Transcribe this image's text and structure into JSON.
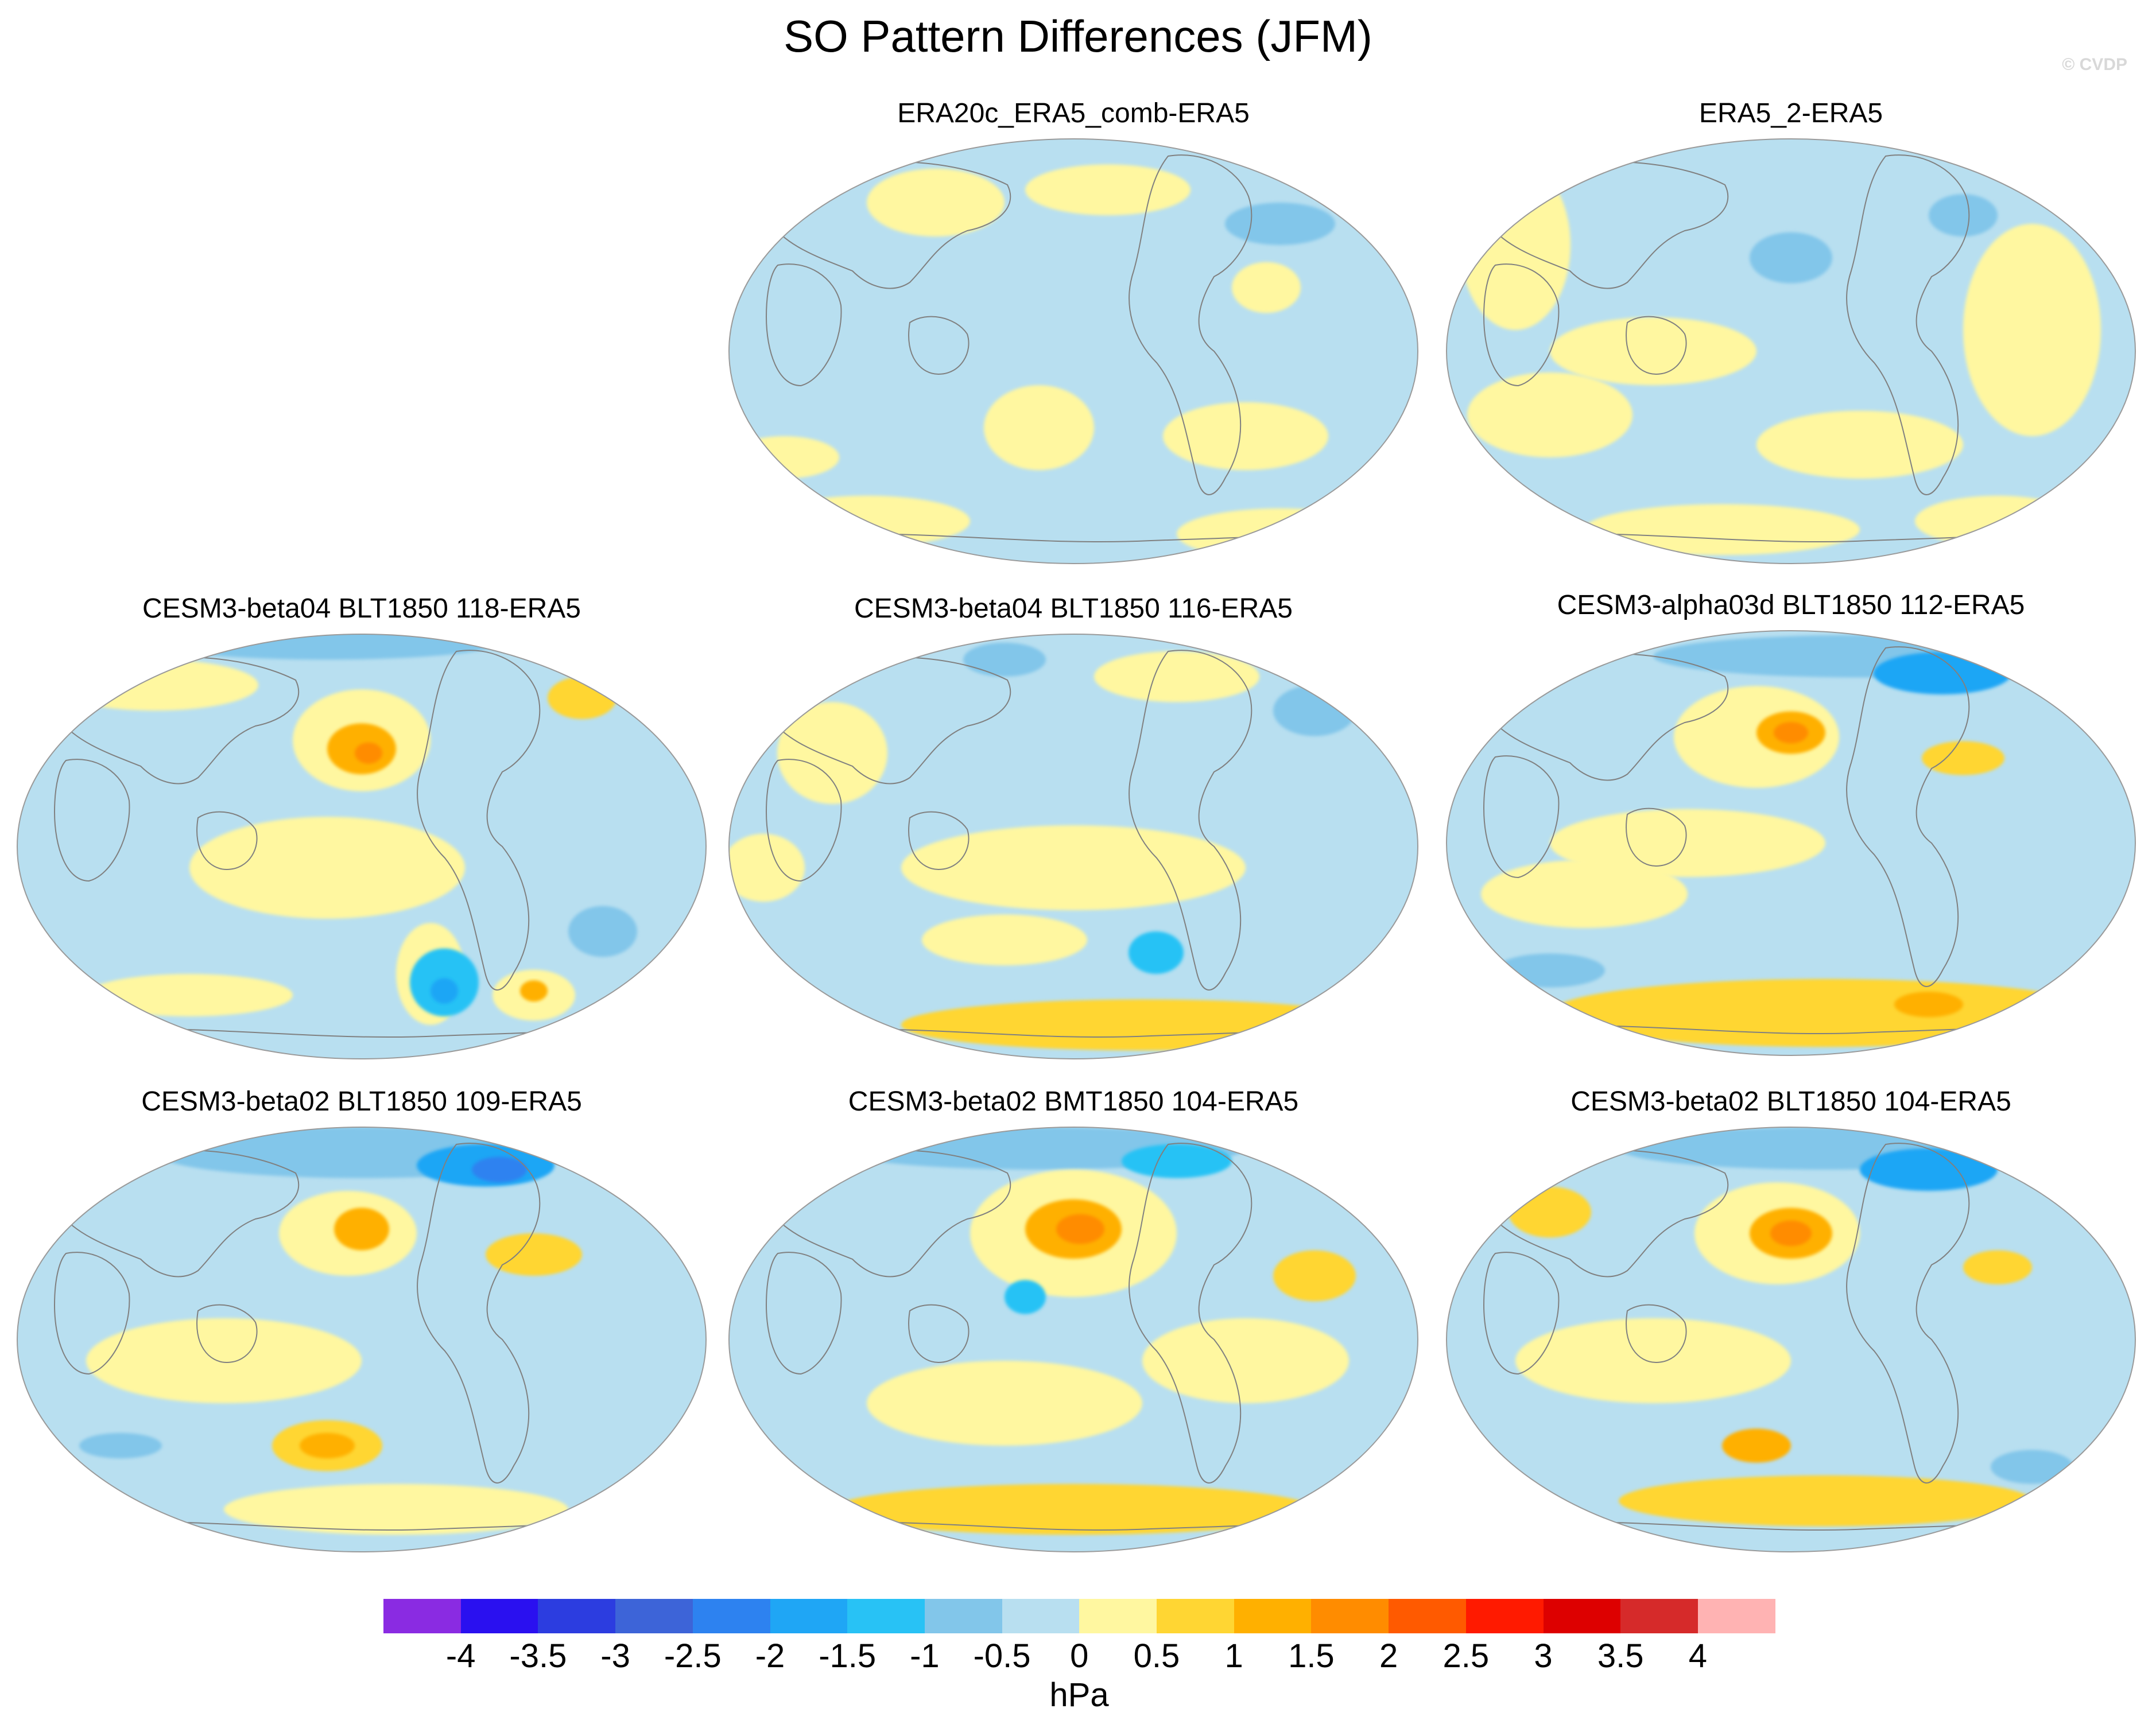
{
  "title": "SO Pattern Differences (JFM)",
  "credit": "© CVDP",
  "panels": [
    {
      "id": "p1",
      "title": "ERA20c_ERA5_comb-ERA5",
      "blobs": [
        {
          "value": 0.25,
          "nx": 0.3,
          "ny": 0.15,
          "rx": 0.1,
          "ry": 0.08
        },
        {
          "value": 0.25,
          "nx": 0.55,
          "ny": 0.12,
          "rx": 0.12,
          "ry": 0.06
        },
        {
          "value": -0.75,
          "nx": 0.8,
          "ny": 0.2,
          "rx": 0.08,
          "ry": 0.05
        },
        {
          "value": 0.25,
          "nx": 0.78,
          "ny": 0.35,
          "rx": 0.05,
          "ry": 0.06
        },
        {
          "value": 0.25,
          "nx": 0.45,
          "ny": 0.68,
          "rx": 0.08,
          "ry": 0.1
        },
        {
          "value": 0.25,
          "nx": 0.75,
          "ny": 0.7,
          "rx": 0.12,
          "ry": 0.08
        },
        {
          "value": 0.25,
          "nx": 0.2,
          "ny": 0.9,
          "rx": 0.15,
          "ry": 0.06
        },
        {
          "value": 0.25,
          "nx": 0.8,
          "ny": 0.93,
          "rx": 0.15,
          "ry": 0.06
        },
        {
          "value": 0.25,
          "nx": 0.08,
          "ny": 0.75,
          "rx": 0.08,
          "ry": 0.05
        }
      ]
    },
    {
      "id": "p2",
      "title": "ERA5_2-ERA5",
      "blobs": [
        {
          "value": 0.25,
          "nx": 0.1,
          "ny": 0.25,
          "rx": 0.08,
          "ry": 0.2
        },
        {
          "value": -0.75,
          "nx": 0.5,
          "ny": 0.28,
          "rx": 0.06,
          "ry": 0.06
        },
        {
          "value": -0.75,
          "nx": 0.75,
          "ny": 0.18,
          "rx": 0.05,
          "ry": 0.05
        },
        {
          "value": 0.25,
          "nx": 0.3,
          "ny": 0.5,
          "rx": 0.15,
          "ry": 0.08
        },
        {
          "value": 0.25,
          "nx": 0.85,
          "ny": 0.45,
          "rx": 0.1,
          "ry": 0.25
        },
        {
          "value": 0.25,
          "nx": 0.15,
          "ny": 0.65,
          "rx": 0.12,
          "ry": 0.1
        },
        {
          "value": 0.25,
          "nx": 0.6,
          "ny": 0.72,
          "rx": 0.15,
          "ry": 0.08
        },
        {
          "value": 0.25,
          "nx": 0.4,
          "ny": 0.92,
          "rx": 0.2,
          "ry": 0.06
        },
        {
          "value": 0.25,
          "nx": 0.8,
          "ny": 0.9,
          "rx": 0.12,
          "ry": 0.06
        }
      ]
    },
    {
      "id": "p3",
      "title": "CESM3-beta04 BLT1850 118-ERA5",
      "blobs": [
        {
          "value": -0.75,
          "nx": 0.45,
          "ny": 0.02,
          "rx": 0.25,
          "ry": 0.04
        },
        {
          "value": 0.25,
          "nx": 0.5,
          "ny": 0.25,
          "rx": 0.1,
          "ry": 0.12
        },
        {
          "value": 1.25,
          "nx": 0.5,
          "ny": 0.27,
          "rx": 0.05,
          "ry": 0.06
        },
        {
          "value": 1.75,
          "nx": 0.51,
          "ny": 0.28,
          "rx": 0.02,
          "ry": 0.025
        },
        {
          "value": 0.75,
          "nx": 0.82,
          "ny": 0.15,
          "rx": 0.05,
          "ry": 0.05
        },
        {
          "value": 0.25,
          "nx": 0.2,
          "ny": 0.12,
          "rx": 0.15,
          "ry": 0.06
        },
        {
          "value": 0.25,
          "nx": 0.45,
          "ny": 0.55,
          "rx": 0.2,
          "ry": 0.12
        },
        {
          "value": 0.25,
          "nx": 0.6,
          "ny": 0.8,
          "rx": 0.05,
          "ry": 0.12
        },
        {
          "value": -1.25,
          "nx": 0.62,
          "ny": 0.82,
          "rx": 0.05,
          "ry": 0.08
        },
        {
          "value": -1.75,
          "nx": 0.62,
          "ny": 0.84,
          "rx": 0.02,
          "ry": 0.03
        },
        {
          "value": 0.25,
          "nx": 0.75,
          "ny": 0.85,
          "rx": 0.06,
          "ry": 0.06
        },
        {
          "value": 1.25,
          "nx": 0.75,
          "ny": 0.84,
          "rx": 0.02,
          "ry": 0.025
        },
        {
          "value": -0.75,
          "nx": 0.85,
          "ny": 0.7,
          "rx": 0.05,
          "ry": 0.06
        },
        {
          "value": 0.25,
          "nx": 0.25,
          "ny": 0.85,
          "rx": 0.15,
          "ry": 0.05
        }
      ]
    },
    {
      "id": "p4",
      "title": "CESM3-beta04 BLT1850 116-ERA5",
      "blobs": [
        {
          "value": -0.75,
          "nx": 0.4,
          "ny": 0.06,
          "rx": 0.06,
          "ry": 0.04
        },
        {
          "value": 0.25,
          "nx": 0.65,
          "ny": 0.1,
          "rx": 0.12,
          "ry": 0.06
        },
        {
          "value": -0.75,
          "nx": 0.85,
          "ny": 0.18,
          "rx": 0.06,
          "ry": 0.06
        },
        {
          "value": 0.25,
          "nx": 0.15,
          "ny": 0.28,
          "rx": 0.08,
          "ry": 0.12
        },
        {
          "value": 0.25,
          "nx": 0.5,
          "ny": 0.55,
          "rx": 0.25,
          "ry": 0.1
        },
        {
          "value": -1.25,
          "nx": 0.62,
          "ny": 0.75,
          "rx": 0.04,
          "ry": 0.05
        },
        {
          "value": 0.75,
          "nx": 0.6,
          "ny": 0.92,
          "rx": 0.35,
          "ry": 0.06
        },
        {
          "value": 0.25,
          "nx": 0.4,
          "ny": 0.72,
          "rx": 0.12,
          "ry": 0.06
        },
        {
          "value": 0.25,
          "nx": 0.05,
          "ny": 0.55,
          "rx": 0.06,
          "ry": 0.08
        }
      ]
    },
    {
      "id": "p5",
      "title": "CESM3-alpha03d BLT1850 112-ERA5",
      "blobs": [
        {
          "value": -0.75,
          "nx": 0.6,
          "ny": 0.06,
          "rx": 0.3,
          "ry": 0.05
        },
        {
          "value": -1.75,
          "nx": 0.72,
          "ny": 0.1,
          "rx": 0.1,
          "ry": 0.05
        },
        {
          "value": 0.25,
          "nx": 0.45,
          "ny": 0.25,
          "rx": 0.12,
          "ry": 0.12
        },
        {
          "value": 1.25,
          "nx": 0.5,
          "ny": 0.24,
          "rx": 0.05,
          "ry": 0.05
        },
        {
          "value": 1.75,
          "nx": 0.5,
          "ny": 0.24,
          "rx": 0.025,
          "ry": 0.025
        },
        {
          "value": 0.75,
          "nx": 0.75,
          "ny": 0.3,
          "rx": 0.06,
          "ry": 0.04
        },
        {
          "value": 0.25,
          "nx": 0.35,
          "ny": 0.5,
          "rx": 0.2,
          "ry": 0.08
        },
        {
          "value": 0.25,
          "nx": 0.2,
          "ny": 0.62,
          "rx": 0.15,
          "ry": 0.08
        },
        {
          "value": -0.75,
          "nx": 0.15,
          "ny": 0.8,
          "rx": 0.08,
          "ry": 0.04
        },
        {
          "value": 0.75,
          "nx": 0.55,
          "ny": 0.9,
          "rx": 0.4,
          "ry": 0.08
        },
        {
          "value": 1.25,
          "nx": 0.7,
          "ny": 0.88,
          "rx": 0.05,
          "ry": 0.03
        }
      ]
    },
    {
      "id": "p6",
      "title": "CESM3-beta02 BLT1850 109-ERA5",
      "blobs": [
        {
          "value": -0.75,
          "nx": 0.5,
          "ny": 0.06,
          "rx": 0.3,
          "ry": 0.06
        },
        {
          "value": -1.75,
          "nx": 0.68,
          "ny": 0.09,
          "rx": 0.1,
          "ry": 0.05
        },
        {
          "value": -2.25,
          "nx": 0.7,
          "ny": 0.1,
          "rx": 0.04,
          "ry": 0.03
        },
        {
          "value": 0.25,
          "nx": 0.48,
          "ny": 0.25,
          "rx": 0.1,
          "ry": 0.1
        },
        {
          "value": 1.25,
          "nx": 0.5,
          "ny": 0.24,
          "rx": 0.04,
          "ry": 0.05
        },
        {
          "value": 0.75,
          "nx": 0.75,
          "ny": 0.3,
          "rx": 0.07,
          "ry": 0.05
        },
        {
          "value": 0.25,
          "nx": 0.3,
          "ny": 0.55,
          "rx": 0.2,
          "ry": 0.1
        },
        {
          "value": 0.75,
          "nx": 0.45,
          "ny": 0.75,
          "rx": 0.08,
          "ry": 0.06
        },
        {
          "value": 1.25,
          "nx": 0.45,
          "ny": 0.75,
          "rx": 0.04,
          "ry": 0.03
        },
        {
          "value": -0.75,
          "nx": 0.15,
          "ny": 0.75,
          "rx": 0.06,
          "ry": 0.03
        },
        {
          "value": 0.25,
          "nx": 0.55,
          "ny": 0.9,
          "rx": 0.25,
          "ry": 0.06
        }
      ]
    },
    {
      "id": "p7",
      "title": "CESM3-beta02 BMT1850 104-ERA5",
      "blobs": [
        {
          "value": -0.75,
          "nx": 0.45,
          "ny": 0.05,
          "rx": 0.3,
          "ry": 0.05
        },
        {
          "value": -1.25,
          "nx": 0.65,
          "ny": 0.08,
          "rx": 0.08,
          "ry": 0.04
        },
        {
          "value": 0.25,
          "nx": 0.5,
          "ny": 0.25,
          "rx": 0.15,
          "ry": 0.15
        },
        {
          "value": 1.25,
          "nx": 0.5,
          "ny": 0.24,
          "rx": 0.07,
          "ry": 0.07
        },
        {
          "value": 1.75,
          "nx": 0.51,
          "ny": 0.24,
          "rx": 0.035,
          "ry": 0.035
        },
        {
          "value": 0.75,
          "nx": 0.85,
          "ny": 0.35,
          "rx": 0.06,
          "ry": 0.06
        },
        {
          "value": -1.25,
          "nx": 0.43,
          "ny": 0.4,
          "rx": 0.03,
          "ry": 0.04
        },
        {
          "value": 0.25,
          "nx": 0.4,
          "ny": 0.65,
          "rx": 0.2,
          "ry": 0.1
        },
        {
          "value": 0.75,
          "nx": 0.5,
          "ny": 0.9,
          "rx": 0.35,
          "ry": 0.06
        },
        {
          "value": 0.25,
          "nx": 0.75,
          "ny": 0.55,
          "rx": 0.15,
          "ry": 0.1
        }
      ]
    },
    {
      "id": "p8",
      "title": "CESM3-beta02 BLT1850 104-ERA5",
      "blobs": [
        {
          "value": -0.75,
          "nx": 0.55,
          "ny": 0.05,
          "rx": 0.3,
          "ry": 0.05
        },
        {
          "value": -1.75,
          "nx": 0.7,
          "ny": 0.1,
          "rx": 0.1,
          "ry": 0.05
        },
        {
          "value": 0.75,
          "nx": 0.15,
          "ny": 0.2,
          "rx": 0.06,
          "ry": 0.06
        },
        {
          "value": 0.25,
          "nx": 0.48,
          "ny": 0.25,
          "rx": 0.12,
          "ry": 0.12
        },
        {
          "value": 1.25,
          "nx": 0.5,
          "ny": 0.25,
          "rx": 0.06,
          "ry": 0.06
        },
        {
          "value": 1.75,
          "nx": 0.5,
          "ny": 0.25,
          "rx": 0.03,
          "ry": 0.03
        },
        {
          "value": 0.75,
          "nx": 0.8,
          "ny": 0.33,
          "rx": 0.05,
          "ry": 0.04
        },
        {
          "value": 0.25,
          "nx": 0.3,
          "ny": 0.55,
          "rx": 0.2,
          "ry": 0.1
        },
        {
          "value": 1.25,
          "nx": 0.45,
          "ny": 0.75,
          "rx": 0.05,
          "ry": 0.04
        },
        {
          "value": 0.75,
          "nx": 0.55,
          "ny": 0.88,
          "rx": 0.3,
          "ry": 0.06
        },
        {
          "value": -0.75,
          "nx": 0.85,
          "ny": 0.8,
          "rx": 0.06,
          "ry": 0.04
        }
      ]
    }
  ],
  "colorbar": {
    "unit": "hPa",
    "levels": [
      "-4",
      "-3.5",
      "-3",
      "-2.5",
      "-2",
      "-1.5",
      "-1",
      "-0.5",
      "0",
      "0.5",
      "1",
      "1.5",
      "2",
      "2.5",
      "3",
      "3.5",
      "4"
    ],
    "colors": [
      "#8a2be2",
      "#2a10f0",
      "#2c3de0",
      "#3d64d8",
      "#2d82f0",
      "#1fa6f5",
      "#28c2f5",
      "#82c6ea",
      "#b8dff0",
      "#fff7a0",
      "#ffd633",
      "#ffb000",
      "#ff8c00",
      "#ff5a00",
      "#ff1a00",
      "#dd0000",
      "#d62a2a",
      "#ffb3b3"
    ]
  }
}
